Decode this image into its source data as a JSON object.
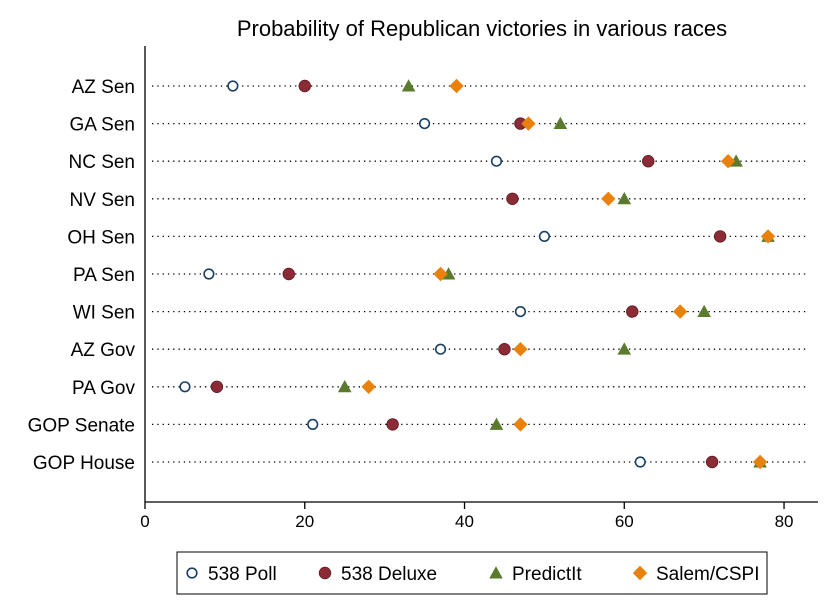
{
  "chart_data": {
    "type": "scatter",
    "title": "Probability of Republican victories in various races",
    "xlabel": "",
    "ylabel": "",
    "xlim": [
      0,
      83
    ],
    "xticks": [
      0,
      20,
      40,
      60,
      80
    ],
    "grid": false,
    "legend_position": "bottom",
    "categories": [
      "AZ Sen",
      "GA Sen",
      "NC Sen",
      "NV Sen",
      "OH Sen",
      "PA Sen",
      "WI Sen",
      "AZ Gov",
      "PA Gov",
      "GOP Senate",
      "GOP House"
    ],
    "series": [
      {
        "name": "538 Poll",
        "marker": "hollow-circle",
        "color": "#1a3f66",
        "values": [
          11,
          35,
          44,
          46,
          50,
          8,
          47,
          37,
          5,
          21,
          62
        ]
      },
      {
        "name": "538 Deluxe",
        "marker": "circle",
        "color": "#8b2b35",
        "values": [
          20,
          47,
          63,
          46,
          72,
          18,
          61,
          45,
          9,
          31,
          71
        ]
      },
      {
        "name": "PredictIt",
        "marker": "triangle",
        "color": "#5a7a2e",
        "values": [
          33,
          52,
          74,
          60,
          78,
          38,
          70,
          60,
          25,
          44,
          77
        ]
      },
      {
        "name": "Salem/CSPI",
        "marker": "diamond",
        "color": "#e8820c",
        "values": [
          39,
          48,
          73,
          58,
          78,
          37,
          67,
          47,
          28,
          47,
          77
        ]
      }
    ]
  }
}
